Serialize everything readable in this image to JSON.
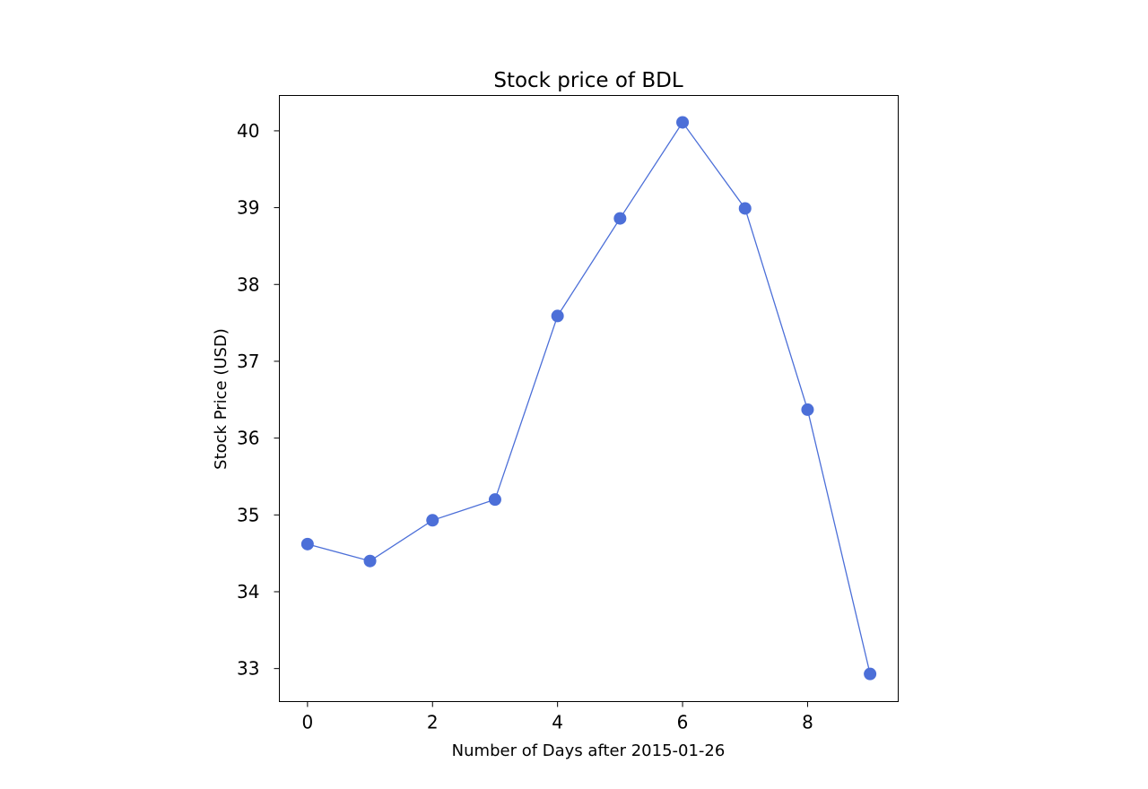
{
  "chart_data": {
    "type": "line",
    "title": "Stock price of BDL",
    "xlabel": "Number of Days after 2015-01-26",
    "ylabel": "Stock Price (USD)",
    "x": [
      0,
      1,
      2,
      3,
      4,
      5,
      6,
      7,
      8,
      9
    ],
    "series": [
      {
        "values": [
          34.62,
          34.4,
          34.93,
          35.2,
          37.59,
          38.86,
          40.11,
          38.99,
          36.37,
          32.93
        ],
        "color": "#4c6fd8"
      }
    ],
    "xlim": [
      -0.45,
      9.45
    ],
    "ylim": [
      32.57,
      40.46
    ],
    "xticks": [
      0,
      2,
      4,
      6,
      8
    ],
    "yticks": [
      33,
      34,
      35,
      36,
      37,
      38,
      39,
      40
    ],
    "grid": false,
    "marker": "circle"
  }
}
